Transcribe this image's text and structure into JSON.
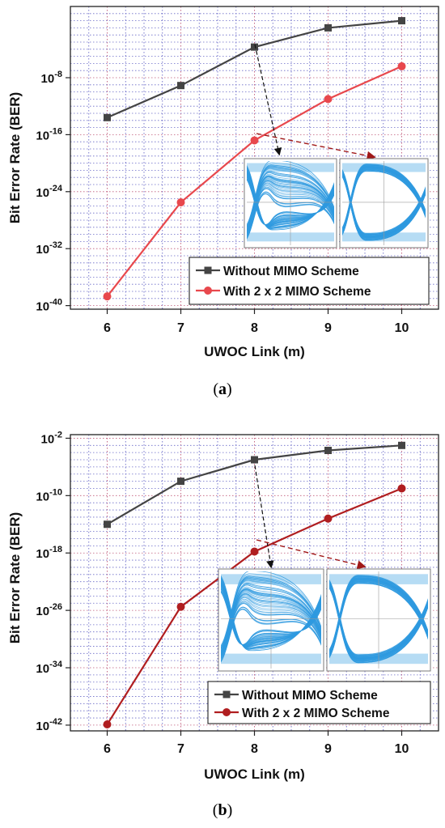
{
  "chart_data": [
    {
      "type": "line",
      "panel": "a",
      "categories": [
        "6",
        "7",
        "8",
        "9",
        "10"
      ],
      "x": [
        6,
        7,
        8,
        9,
        10
      ],
      "xlabel": "UWOC Link (m)",
      "ylabel": "Bit Error Rate (BER)",
      "xlim": [
        5.5,
        10.5
      ],
      "ylim": [
        -40.5,
        2
      ],
      "yscale": "log",
      "yticks": [
        -8,
        -16,
        -24,
        -32,
        -40
      ],
      "ytick_labels": [
        "10",
        "10",
        "10",
        "10",
        "10"
      ],
      "ytick_exps": [
        "-8",
        "-16",
        "-24",
        "-32",
        "-40"
      ],
      "grid": true,
      "legend_position": "bottom-right",
      "series": [
        {
          "name": "Without MIMO Scheme",
          "color": "#444444",
          "marker": "square",
          "values": [
            -13.6,
            -9.1,
            -3.7,
            -1.0,
            0.0
          ]
        },
        {
          "name": "With 2 x 2 MIMO Scheme",
          "color": "#e8484d",
          "marker": "circle",
          "values": [
            -38.7,
            -25.5,
            -16.8,
            -11.0,
            -6.4
          ]
        }
      ],
      "insets": [
        "eye-diagram",
        "eye-diagram"
      ]
    },
    {
      "type": "line",
      "panel": "b",
      "categories": [
        "6",
        "7",
        "8",
        "9",
        "10"
      ],
      "x": [
        6,
        7,
        8,
        9,
        10
      ],
      "xlabel": "UWOC Link (m)",
      "ylabel": "Bit Error Rate (BER)",
      "xlim": [
        5.5,
        10.5
      ],
      "ylim": [
        -42.8,
        -1.5
      ],
      "yscale": "log",
      "yticks": [
        -2,
        -10,
        -18,
        -26,
        -34,
        -42
      ],
      "ytick_labels": [
        "10",
        "10",
        "10",
        "10",
        "10",
        "10"
      ],
      "ytick_exps": [
        "-2",
        "-10",
        "-18",
        "-26",
        "-34",
        "-42"
      ],
      "grid": true,
      "legend_position": "bottom-right",
      "series": [
        {
          "name": "Without MIMO Scheme",
          "color": "#444444",
          "marker": "square",
          "values": [
            -14.0,
            -8.0,
            -5.0,
            -3.7,
            -3.0
          ]
        },
        {
          "name": "With 2 x 2 MIMO Scheme",
          "color": "#b01e20",
          "marker": "circle",
          "values": [
            -41.9,
            -25.5,
            -17.8,
            -13.2,
            -9.0
          ]
        }
      ],
      "insets": [
        "eye-diagram",
        "eye-diagram"
      ]
    }
  ],
  "captions": [
    {
      "open": "(",
      "letter": "a",
      "close": ")"
    },
    {
      "open": "(",
      "letter": "b",
      "close": ")"
    }
  ]
}
